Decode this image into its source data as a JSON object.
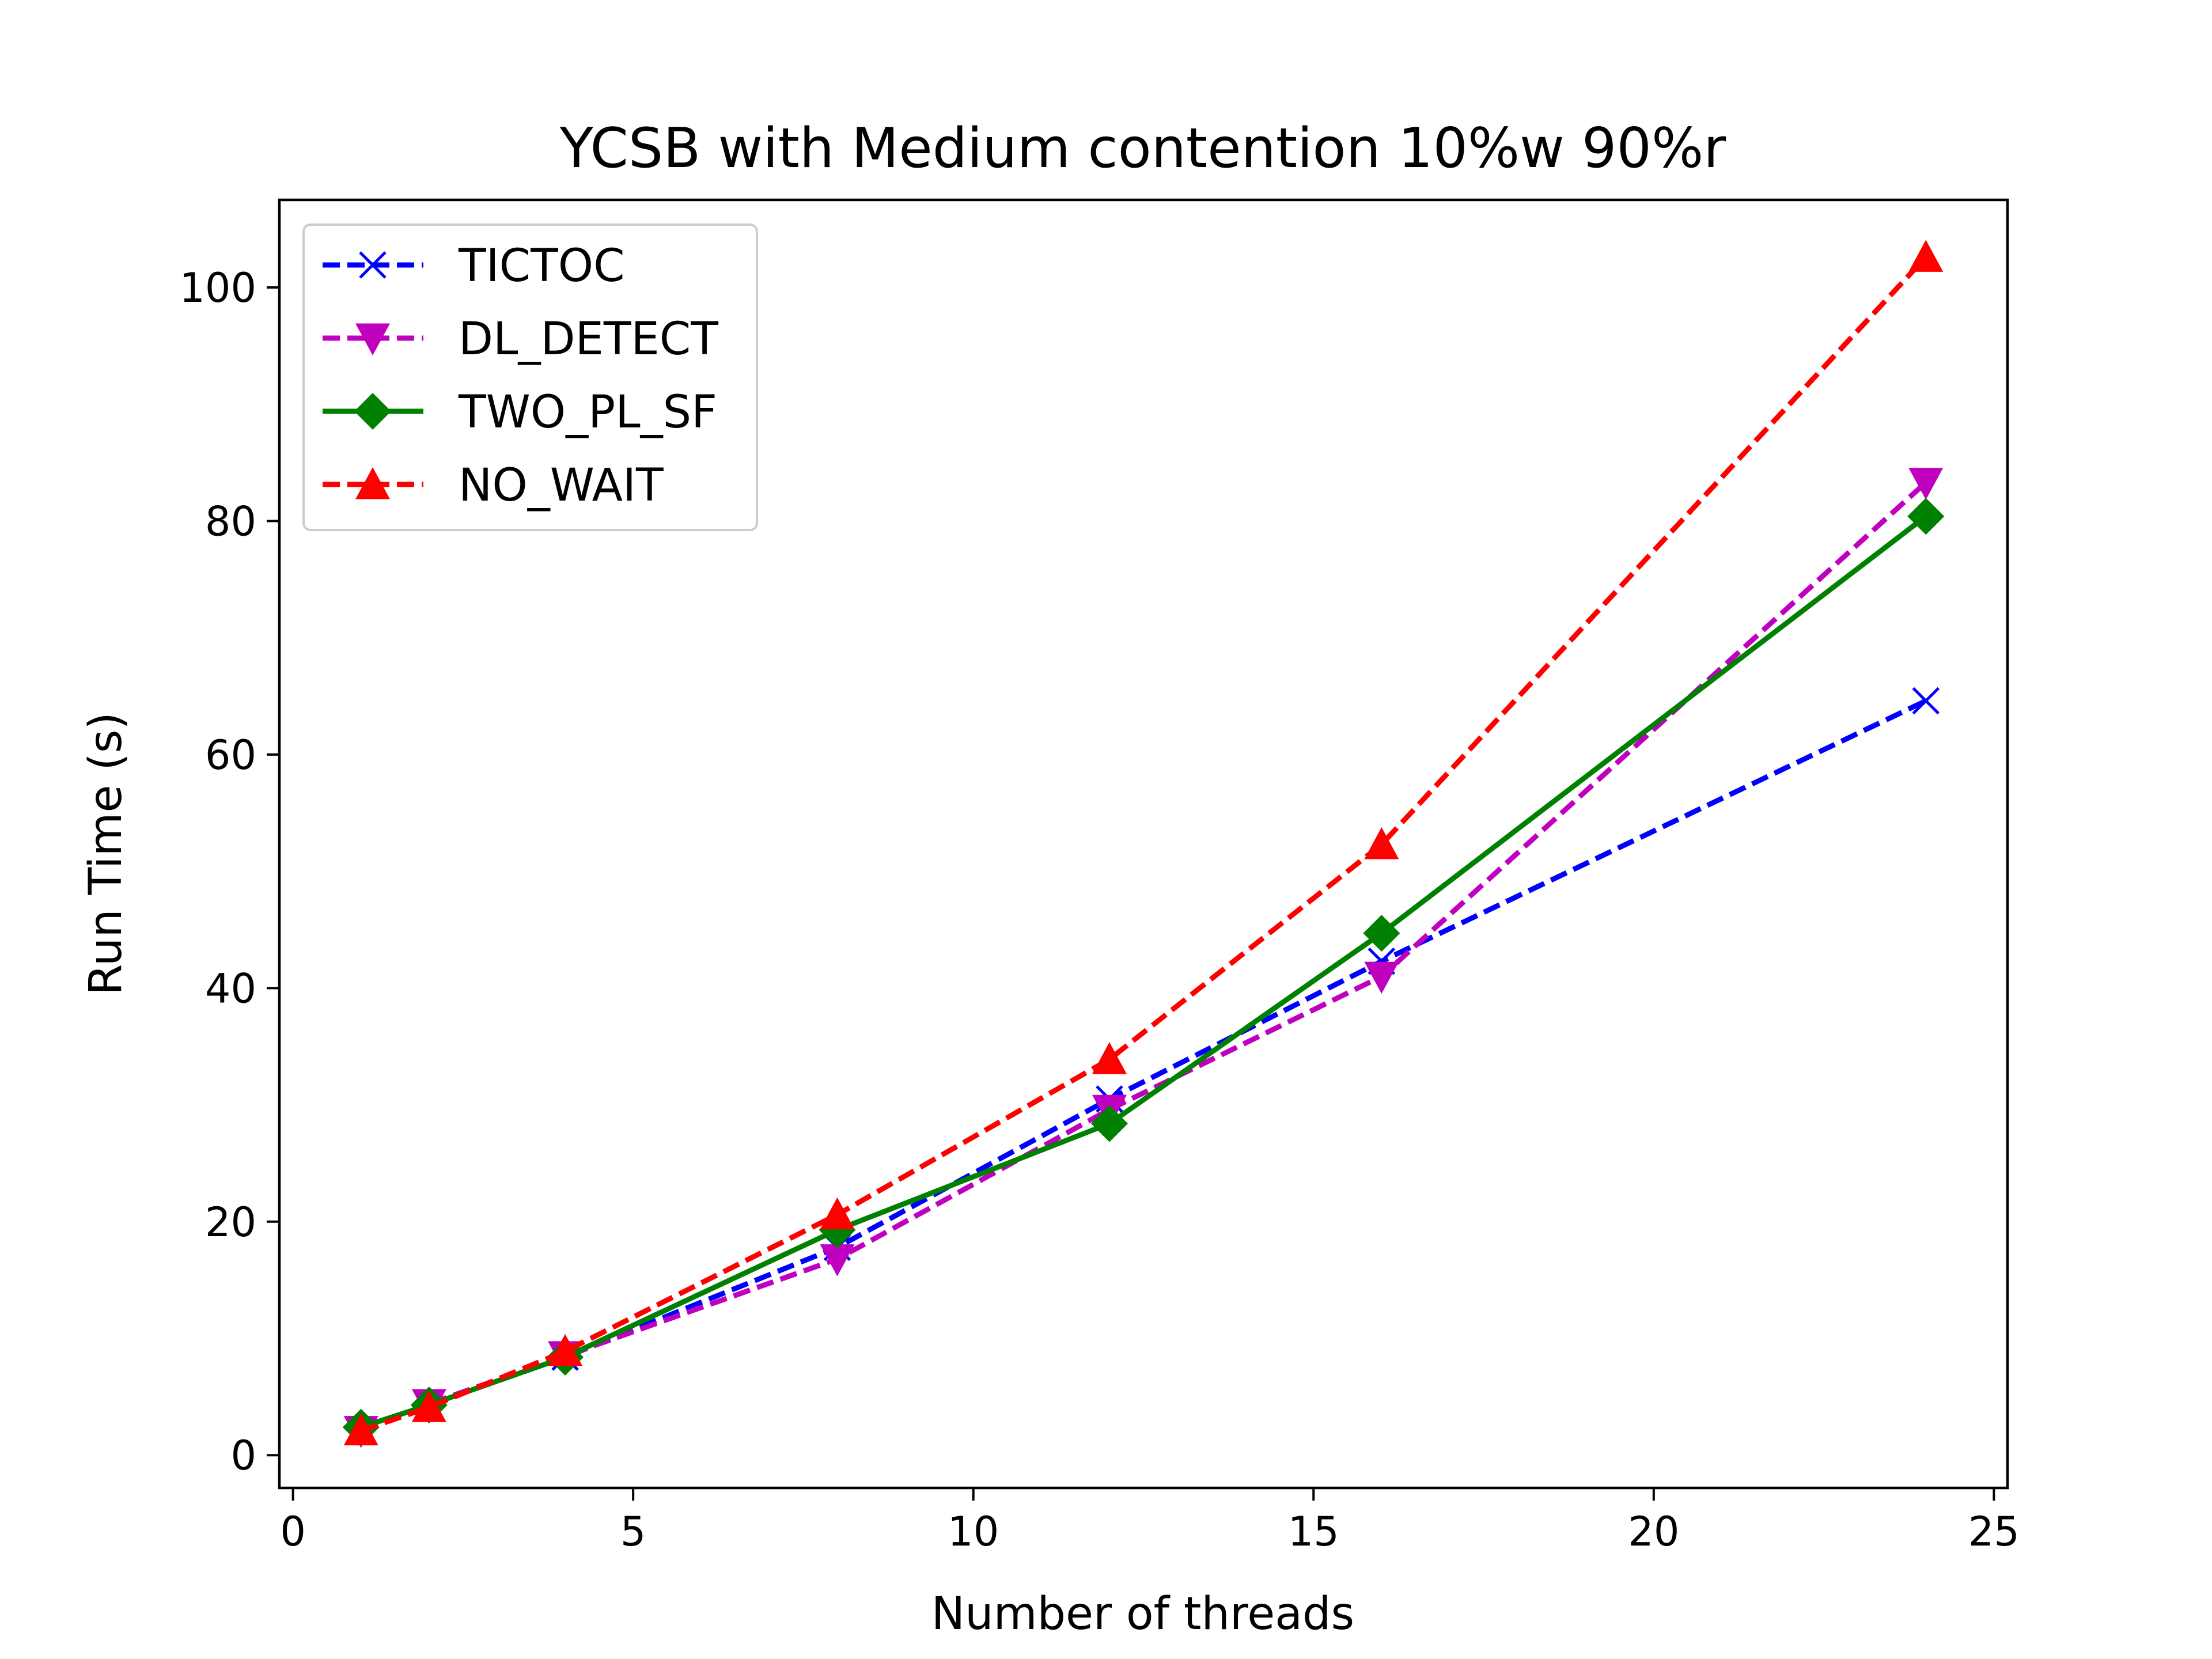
{
  "chart_data": {
    "type": "line",
    "title": "YCSB with Medium contention 10%w 90%r",
    "xlabel": "Number of threads",
    "ylabel": "Run Time (s)",
    "xlim": [
      -0.2,
      25.2
    ],
    "ylim": [
      -2.8,
      107.5
    ],
    "xticks": [
      0,
      5,
      10,
      15,
      20,
      25
    ],
    "yticks": [
      0,
      20,
      40,
      60,
      80,
      100
    ],
    "grid": false,
    "legend_position": "top-left",
    "x": [
      1,
      2,
      4,
      8,
      12,
      16,
      24
    ],
    "series": [
      {
        "name": "TICTOC",
        "color": "#0000ff",
        "dash": "dashed",
        "marker": "x",
        "values": [
          2.2,
          4.3,
          8.4,
          17.8,
          30.5,
          42.3,
          64.6
        ]
      },
      {
        "name": "DL_DETECT",
        "color": "#bf00bf",
        "dash": "dashed",
        "marker": "triangle-down",
        "values": [
          2.1,
          4.4,
          8.5,
          16.8,
          29.6,
          41.0,
          83.3
        ]
      },
      {
        "name": "TWO_PL_SF",
        "color": "#008000",
        "dash": "solid",
        "marker": "diamond",
        "values": [
          2.4,
          4.3,
          8.4,
          19.3,
          28.4,
          44.7,
          80.4
        ]
      },
      {
        "name": "NO_WAIT",
        "color": "#ff0000",
        "dash": "dashed",
        "marker": "triangle-up",
        "values": [
          2.1,
          4.1,
          8.9,
          20.6,
          33.9,
          52.3,
          102.6
        ]
      }
    ]
  }
}
